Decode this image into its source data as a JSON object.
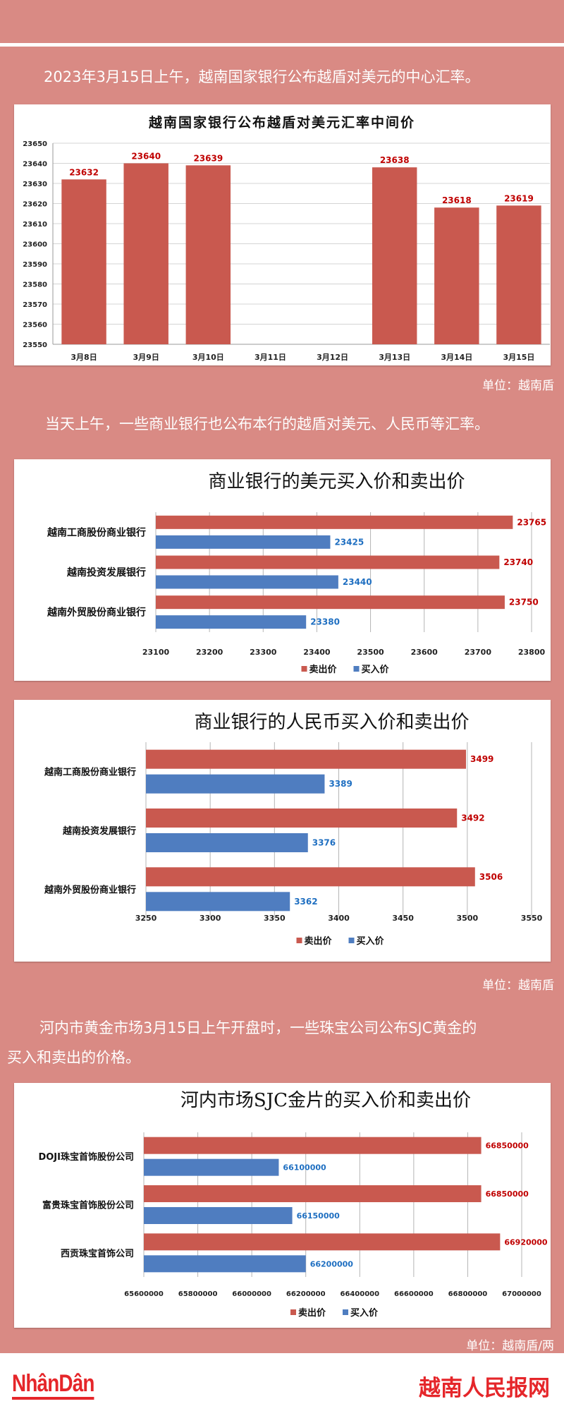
{
  "colors": {
    "background": "#D98A84",
    "sell_bar": "#C9594F",
    "buy_bar": "#4F7DC0",
    "sell_label": "#C00000",
    "buy_label": "#1F6FC1",
    "brand_red": "#E5262A"
  },
  "paragraphs": {
    "p1": "2023年3月15日上午，越南国家银行公布越盾对美元的中心汇率。",
    "p2": "当天上午，一些商业银行也公布本行的越盾对美元、人民币等汇率。",
    "p3_line1": "河内市黄金市场3月15日上午开盘时，一些珠宝公司公布SJC黄金的",
    "p3_line2": "买入和卖出的价格。"
  },
  "units": {
    "u1": "单位：越南盾",
    "u2": "单位：越南盾",
    "u3": "单位：越南盾/两"
  },
  "footer": {
    "logo_left": "NhânDân",
    "logo_right": "越南人民报网"
  },
  "chart_data": [
    {
      "type": "bar",
      "title": "越南国家银行公布越盾对美元汇率中间价",
      "categories": [
        "3月8日",
        "3月9日",
        "3月10日",
        "3月11日",
        "3月12日",
        "3月13日",
        "3月14日",
        "3月15日"
      ],
      "values": [
        23632,
        23640,
        23639,
        null,
        null,
        23638,
        23618,
        23619
      ],
      "data_labels": [
        "23632",
        "23640",
        "23639",
        "",
        "",
        "23638",
        "23618",
        "23619"
      ],
      "xlabel": "",
      "ylabel": "",
      "ylim": [
        23550,
        23650
      ],
      "yticks": [
        23650,
        23640,
        23630,
        23620,
        23610,
        23600,
        23590,
        23580,
        23570,
        23560,
        23550
      ],
      "grid": true,
      "legend": null
    },
    {
      "type": "bar",
      "orientation": "horizontal",
      "title": "商业银行的美元买入价和卖出价",
      "categories": [
        "越南工商股份商业银行",
        "越南投资发展银行",
        "越南外贸股份商业银行"
      ],
      "series": [
        {
          "name": "卖出价",
          "values": [
            23765,
            23740,
            23750
          ]
        },
        {
          "name": "买入价",
          "values": [
            23425,
            23440,
            23380
          ]
        }
      ],
      "xlim": [
        23100,
        23800
      ],
      "xticks": [
        23100,
        23200,
        23300,
        23400,
        23500,
        23600,
        23700,
        23800
      ],
      "grid": true,
      "legend": {
        "position": "bottom",
        "entries": [
          "卖出价",
          "买入价"
        ]
      }
    },
    {
      "type": "bar",
      "orientation": "horizontal",
      "title": "商业银行的人民币买入价和卖出价",
      "categories": [
        "越南工商股份商业银行",
        "越南投资发展银行",
        "越南外贸股份商业银行"
      ],
      "series": [
        {
          "name": "卖出价",
          "values": [
            3499,
            3492,
            3506
          ]
        },
        {
          "name": "买入价",
          "values": [
            3389,
            3376,
            3362
          ]
        }
      ],
      "xlim": [
        3250,
        3550
      ],
      "xticks": [
        3250,
        3300,
        3350,
        3400,
        3450,
        3500,
        3550
      ],
      "grid": true,
      "legend": {
        "position": "bottom",
        "entries": [
          "卖出价",
          "买入价"
        ]
      }
    },
    {
      "type": "bar",
      "orientation": "horizontal",
      "title": "河内市场SJC金片的买入价和卖出价",
      "categories": [
        "DOJI珠宝首饰股份公司",
        "富贵珠宝首饰股份公司",
        "西贡珠宝首饰公司"
      ],
      "series": [
        {
          "name": "卖出价",
          "values": [
            66850000,
            66850000,
            66920000
          ]
        },
        {
          "name": "买入价",
          "values": [
            66100000,
            66150000,
            66200000
          ]
        }
      ],
      "xlim": [
        65600000,
        67000000
      ],
      "xticks": [
        65600000,
        65800000,
        66000000,
        66200000,
        66400000,
        66600000,
        66800000,
        67000000
      ],
      "grid": true,
      "legend": {
        "position": "bottom",
        "entries": [
          "卖出价",
          "买入价"
        ]
      }
    }
  ]
}
